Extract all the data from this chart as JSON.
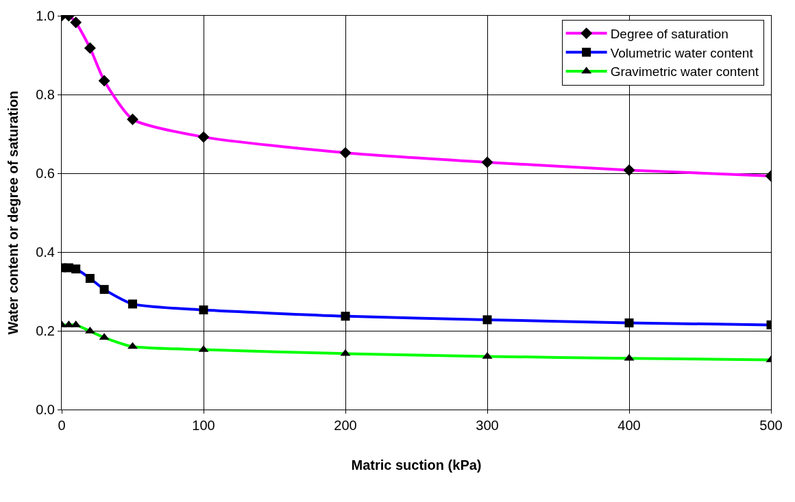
{
  "chart_data": {
    "type": "line",
    "xlabel": "Matric suction (kPa)",
    "ylabel": "Water content or degree of saturation",
    "x": [
      0,
      5,
      10,
      20,
      30,
      50,
      100,
      200,
      300,
      400,
      500
    ],
    "series": [
      {
        "name": "Degree of saturation",
        "color": "#ff00ff",
        "marker": "diamond",
        "values": [
          1.0,
          1.0,
          0.983,
          0.918,
          0.835,
          0.737,
          0.692,
          0.652,
          0.628,
          0.608,
          0.593
        ]
      },
      {
        "name": "Volumetric water content",
        "color": "#0000ff",
        "marker": "square",
        "values": [
          0.36,
          0.36,
          0.357,
          0.333,
          0.305,
          0.268,
          0.253,
          0.237,
          0.228,
          0.22,
          0.215
        ]
      },
      {
        "name": "Gravimetric water content",
        "color": "#00ff00",
        "marker": "triangle",
        "values": [
          0.215,
          0.215,
          0.215,
          0.199,
          0.183,
          0.16,
          0.152,
          0.142,
          0.135,
          0.13,
          0.126
        ]
      }
    ],
    "xlim": [
      0,
      500
    ],
    "xticks": [
      0,
      100,
      200,
      300,
      400,
      500
    ],
    "ylim": [
      0,
      1.0
    ],
    "yticks": [
      {
        "value": 0,
        "label": "0.0"
      },
      {
        "value": 0.2,
        "label": "0.2"
      },
      {
        "value": 0.4,
        "label": "0.4"
      },
      {
        "value": 0.6,
        "label": "0.6"
      },
      {
        "value": 0.8,
        "label": "0.8"
      },
      {
        "value": 1.0,
        "label": "1.0"
      }
    ],
    "grid": true,
    "legend": "top right"
  }
}
